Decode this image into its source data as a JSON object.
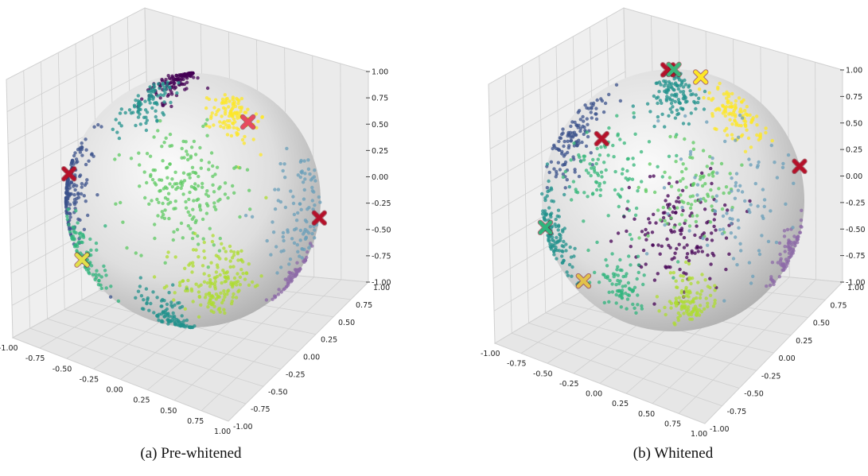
{
  "figure": {
    "captions": [
      "(a) Pre-whitened",
      "(b) Whitened"
    ]
  },
  "chart_data": [
    {
      "type": "scatter",
      "subtype": "3d-scatter-on-unit-sphere",
      "caption": "(a) Pre-whitened",
      "axes": {
        "x_ticks": [
          "-1.00",
          "-0.75",
          "-0.50",
          "-0.25",
          "0.00",
          "0.25",
          "0.50",
          "0.75",
          "1.00"
        ],
        "y_ticks": [
          "-1.00",
          "-0.75",
          "-0.50",
          "-0.25",
          "0.00",
          "0.25",
          "0.50",
          "0.75",
          "1.00"
        ],
        "z_ticks": [
          "-1.00",
          "-0.75",
          "-0.50",
          "-0.25",
          "0.00",
          "0.25",
          "0.50",
          "0.75",
          "1.00"
        ],
        "xlim": [
          -1,
          1
        ],
        "ylim": [
          -1,
          1
        ],
        "zlim": [
          -1,
          1
        ],
        "grid": true
      },
      "clusters": [
        {
          "color": "#440154",
          "lon": -25,
          "lat": 72,
          "spread": 14,
          "n": 130
        },
        {
          "color": "#3b528b",
          "lon": -80,
          "lat": 5,
          "spread": 13,
          "n": 160
        },
        {
          "color": "#21918c",
          "lon": -35,
          "lat": 50,
          "spread": 9,
          "n": 90
        },
        {
          "color": "#21918c",
          "lon": -30,
          "lat": -68,
          "spread": 12,
          "n": 110
        },
        {
          "color": "#2fb47c",
          "lon": -75,
          "lat": -25,
          "spread": 10,
          "n": 90
        },
        {
          "color": "#fde725",
          "lon": 25,
          "lat": 42,
          "spread": 7,
          "n": 110
        },
        {
          "color": "#5ec962",
          "lon": -5,
          "lat": 5,
          "spread": 14,
          "n": 190
        },
        {
          "color": "#addc30",
          "lon": 15,
          "lat": -40,
          "spread": 12,
          "n": 170
        },
        {
          "color": "#6a9fba",
          "lon": 62,
          "lat": -5,
          "spread": 14,
          "n": 100
        },
        {
          "color": "#8e6ba8",
          "lon": 82,
          "lat": -35,
          "spread": 7,
          "n": 60
        }
      ],
      "markers": [
        {
          "color": "#b5112a",
          "lon": -87,
          "lat": 12
        },
        {
          "color": "#b5112a",
          "lon": 88,
          "lat": -8
        },
        {
          "color": "#e2e04a",
          "lon": -82,
          "lat": -28
        },
        {
          "color": "#e84a5f",
          "lon": 33,
          "lat": 38
        }
      ]
    },
    {
      "type": "scatter",
      "subtype": "3d-scatter-on-unit-sphere",
      "caption": "(b) Whitened",
      "axes": {
        "x_ticks": [
          "-1.00",
          "-0.75",
          "-0.50",
          "-0.25",
          "0.00",
          "0.25",
          "0.50",
          "0.75",
          "1.00"
        ],
        "y_ticks": [
          "-1.00",
          "-0.75",
          "-0.50",
          "-0.25",
          "0.00",
          "0.25",
          "0.50",
          "0.75",
          "1.00"
        ],
        "z_ticks": [
          "-1.00",
          "-0.75",
          "-0.50",
          "-0.25",
          "0.00",
          "0.25",
          "0.50",
          "0.75",
          "1.00"
        ],
        "xlim": [
          -1,
          1
        ],
        "ylim": [
          -1,
          1
        ],
        "zlim": [
          -1,
          1
        ],
        "grid": true
      },
      "clusters": [
        {
          "color": "#3b528b",
          "lon": -62,
          "lat": 28,
          "spread": 11,
          "n": 120
        },
        {
          "color": "#21918c",
          "lon": -72,
          "lat": -15,
          "spread": 10,
          "n": 110
        },
        {
          "color": "#21918c",
          "lon": 0,
          "lat": 55,
          "spread": 10,
          "n": 120
        },
        {
          "color": "#35b779",
          "lon": -30,
          "lat": 12,
          "spread": 12,
          "n": 100
        },
        {
          "color": "#440154",
          "lon": 5,
          "lat": -15,
          "spread": 13,
          "n": 140
        },
        {
          "color": "#5ec962",
          "lon": 10,
          "lat": 5,
          "spread": 10,
          "n": 90
        },
        {
          "color": "#fde725",
          "lon": 40,
          "lat": 40,
          "spread": 9,
          "n": 110
        },
        {
          "color": "#addc30",
          "lon": 10,
          "lat": -50,
          "spread": 9,
          "n": 110
        },
        {
          "color": "#2fb47c",
          "lon": -30,
          "lat": -40,
          "spread": 8,
          "n": 80
        },
        {
          "color": "#8e6ba8",
          "lon": 75,
          "lat": -25,
          "spread": 8,
          "n": 80
        },
        {
          "color": "#6a9fba",
          "lon": 30,
          "lat": 5,
          "spread": 18,
          "n": 90
        }
      ],
      "markers": [
        {
          "color": "#b5112a",
          "lon": -22,
          "lat": 84
        },
        {
          "color": "#b5112a",
          "lon": 86,
          "lat": 15
        },
        {
          "color": "#b5112a",
          "lon": -38,
          "lat": 28
        },
        {
          "color": "#3bb57a",
          "lon": 5,
          "lat": 86
        },
        {
          "color": "#fde725",
          "lon": 38,
          "lat": 70
        },
        {
          "color": "#e2c24a",
          "lon": -60,
          "lat": -38
        },
        {
          "color": "#2fb47c",
          "lon": -84,
          "lat": -12
        }
      ]
    }
  ]
}
